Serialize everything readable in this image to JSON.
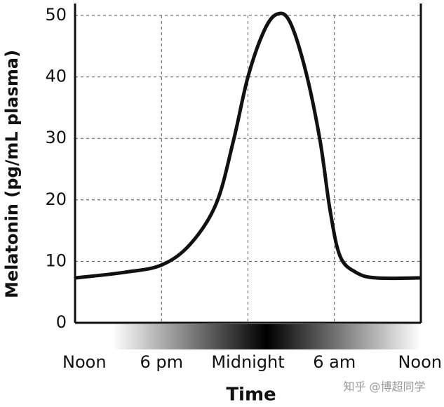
{
  "chart_data": {
    "type": "line",
    "x_label": "Time",
    "y_label": "Melatonin (pg/mL plasma)",
    "x": [
      0,
      3.4,
      6,
      8,
      9.8,
      11,
      12,
      13.1,
      14,
      14.9,
      16,
      17,
      17.7,
      18.4,
      19.5,
      20.9,
      24
    ],
    "series": [
      {
        "name": "Melatonin",
        "color": "#111111",
        "values": [
          7.3,
          8.2,
          9.4,
          12.8,
          19.4,
          29.7,
          40,
          47.4,
          50.2,
          49,
          41,
          29.7,
          18.3,
          10.8,
          8.2,
          7.3,
          7.3
        ]
      }
    ],
    "xlim": [
      0,
      24
    ],
    "ylim": [
      0,
      50
    ],
    "xticks": [
      {
        "value": 0,
        "label": "Noon"
      },
      {
        "value": 6,
        "label": "6 pm"
      },
      {
        "value": 12,
        "label": "Midnight"
      },
      {
        "value": 18,
        "label": "6 am"
      },
      {
        "value": 24,
        "label": "Noon"
      }
    ],
    "yticks": [
      0,
      10,
      20,
      30,
      40,
      50
    ],
    "grid": true
  },
  "watermark": "知乎 @博超同学"
}
